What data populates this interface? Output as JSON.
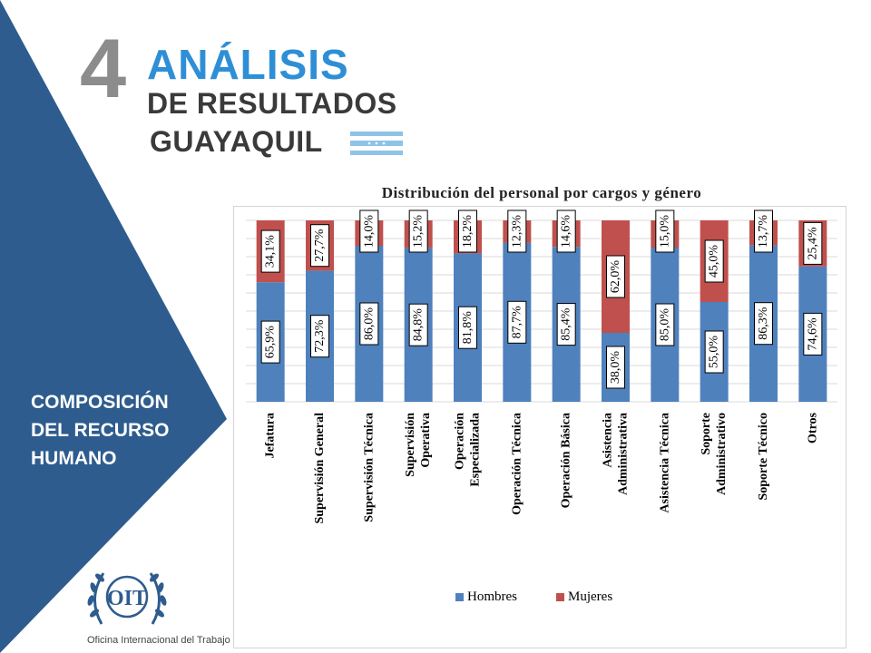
{
  "header": {
    "section_number": "4",
    "title_line1": "ANÁLISIS",
    "title_line2": "DE RESULTADOS",
    "title_line3": "GUAYAQUIL",
    "flag_icon": "guayaquil-flag-icon",
    "flag_colors": [
      "#8ec3e8",
      "#ffffff"
    ]
  },
  "sidebar": {
    "lines": [
      "COMPOSICIÓN",
      "DEL RECURSO",
      "HUMANO"
    ],
    "color": "#2e5c8e"
  },
  "logo": {
    "text": "OIT",
    "caption": "Oficina Internacional del Trabajo",
    "icon": "oit-laurel-logo-icon"
  },
  "chart_data": {
    "type": "bar",
    "stacked": true,
    "percent_stacked": true,
    "title": "Distribución del personal por cargos y género",
    "ylim": [
      0,
      100
    ],
    "grid": true,
    "legend_position": "bottom",
    "categories": [
      "Jefatura",
      "Supervisión General",
      "Supervisión Técnica",
      "Supervisión Operativa",
      "Operación Especializada",
      "Operación Técnica",
      "Operación Básica",
      "Asistencia Administrativa",
      "Asistencia Técnica",
      "Soporte Administrativo",
      "Soporte Técnico",
      "Otros"
    ],
    "category_lines": [
      [
        "Jefatura"
      ],
      [
        "Supervisión General"
      ],
      [
        "Supervisión Técnica"
      ],
      [
        "Supervisión",
        "Operativa"
      ],
      [
        "Operación",
        "Especializada"
      ],
      [
        "Operación Técnica"
      ],
      [
        "Operación Básica"
      ],
      [
        "Asistencia",
        "Administrativa"
      ],
      [
        "Asistencia Técnica"
      ],
      [
        "Soporte",
        "Administrativo"
      ],
      [
        "Soporte Técnico"
      ],
      [
        "Otros"
      ]
    ],
    "series": [
      {
        "name": "Hombres",
        "color": "#4f81bd",
        "values": [
          65.9,
          72.3,
          86.0,
          84.8,
          81.8,
          87.7,
          85.4,
          38.0,
          85.0,
          55.0,
          86.3,
          74.6
        ],
        "labels": [
          "65,9%",
          "72,3%",
          "86,0%",
          "84,8%",
          "81,8%",
          "87,7%",
          "85,4%",
          "38,0%",
          "85,0%",
          "55,0%",
          "86,3%",
          "74,6%"
        ]
      },
      {
        "name": "Mujeres",
        "color": "#c0504d",
        "values": [
          34.1,
          27.7,
          14.0,
          15.2,
          18.2,
          12.3,
          14.6,
          62.0,
          15.0,
          45.0,
          13.7,
          25.4
        ],
        "labels": [
          "34,1%",
          "27,7%",
          "14,0%",
          "15,2%",
          "18,2%",
          "12,3%",
          "14,6%",
          "62,0%",
          "15,0%",
          "45,0%",
          "13,7%",
          "25,4%"
        ]
      }
    ]
  }
}
